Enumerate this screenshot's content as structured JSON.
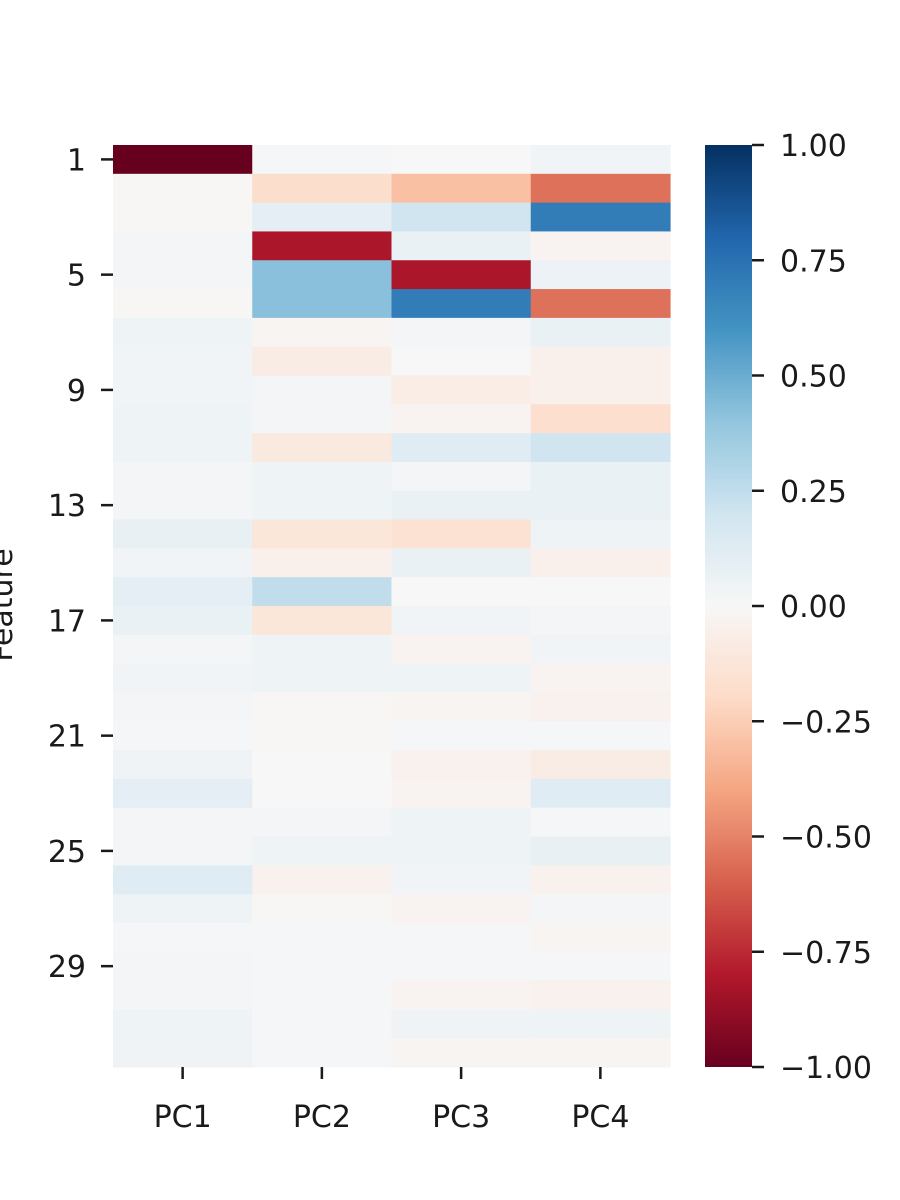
{
  "chart_data": {
    "type": "heatmap",
    "columns": [
      "PC1",
      "PC2",
      "PC3",
      "PC4"
    ],
    "rows": [
      1,
      2,
      3,
      4,
      5,
      6,
      7,
      8,
      9,
      10,
      11,
      12,
      13,
      14,
      15,
      16,
      17,
      18,
      19,
      20,
      21,
      22,
      23,
      24,
      25,
      26,
      27,
      28,
      29,
      30,
      31,
      32
    ],
    "ylabel": "Feature",
    "y_tick_labels": [
      "1",
      "5",
      "9",
      "13",
      "17",
      "21",
      "25",
      "29"
    ],
    "y_tick_rows": [
      1,
      5,
      9,
      13,
      17,
      21,
      25,
      29
    ],
    "values": [
      [
        -1.0,
        0.01,
        0.0,
        0.03
      ],
      [
        -0.01,
        -0.18,
        -0.3,
        -0.55
      ],
      [
        -0.01,
        0.1,
        0.2,
        0.7
      ],
      [
        0.02,
        -0.82,
        0.07,
        -0.03
      ],
      [
        0.02,
        0.42,
        -0.82,
        0.06
      ],
      [
        -0.01,
        0.42,
        0.7,
        -0.55
      ],
      [
        0.05,
        -0.02,
        0.02,
        0.07
      ],
      [
        0.03,
        -0.08,
        0.0,
        -0.05
      ],
      [
        0.03,
        0.02,
        -0.07,
        -0.05
      ],
      [
        0.05,
        0.02,
        -0.03,
        -0.17
      ],
      [
        0.05,
        -0.1,
        0.12,
        0.2
      ],
      [
        0.02,
        0.05,
        0.02,
        0.07
      ],
      [
        0.02,
        0.05,
        0.07,
        0.07
      ],
      [
        0.08,
        -0.12,
        -0.15,
        0.05
      ],
      [
        0.03,
        -0.05,
        0.07,
        -0.05
      ],
      [
        0.1,
        0.25,
        0.0,
        0.0
      ],
      [
        0.07,
        -0.12,
        0.03,
        0.02
      ],
      [
        0.02,
        0.05,
        -0.03,
        0.03
      ],
      [
        0.03,
        0.05,
        0.05,
        -0.03
      ],
      [
        0.02,
        -0.01,
        -0.02,
        -0.04
      ],
      [
        0.01,
        -0.01,
        0.01,
        0.01
      ],
      [
        0.04,
        0.0,
        -0.04,
        -0.08
      ],
      [
        0.1,
        0.0,
        -0.03,
        0.12
      ],
      [
        0.02,
        0.02,
        0.05,
        0.01
      ],
      [
        0.02,
        0.05,
        0.05,
        0.08
      ],
      [
        0.12,
        -0.04,
        0.03,
        -0.04
      ],
      [
        0.05,
        -0.01,
        -0.03,
        0.02
      ],
      [
        0.01,
        0.01,
        0.01,
        -0.02
      ],
      [
        0.02,
        0.01,
        0.01,
        0.01
      ],
      [
        0.02,
        0.01,
        -0.03,
        -0.04
      ],
      [
        0.05,
        0.01,
        0.04,
        0.05
      ],
      [
        0.04,
        0.01,
        -0.02,
        -0.02
      ]
    ],
    "vmin": -1.0,
    "vmax": 1.0,
    "colormap": "RdBu",
    "colorbar": {
      "ticks": [
        1.0,
        0.75,
        0.5,
        0.25,
        0.0,
        -0.25,
        -0.5,
        -0.75,
        -1.0
      ],
      "tick_labels": [
        "1.00",
        "0.75",
        "0.50",
        "0.25",
        "0.00",
        "−0.25",
        "−0.50",
        "−0.75",
        "−1.00"
      ]
    },
    "grid": false,
    "legend": "colorbar-right"
  }
}
